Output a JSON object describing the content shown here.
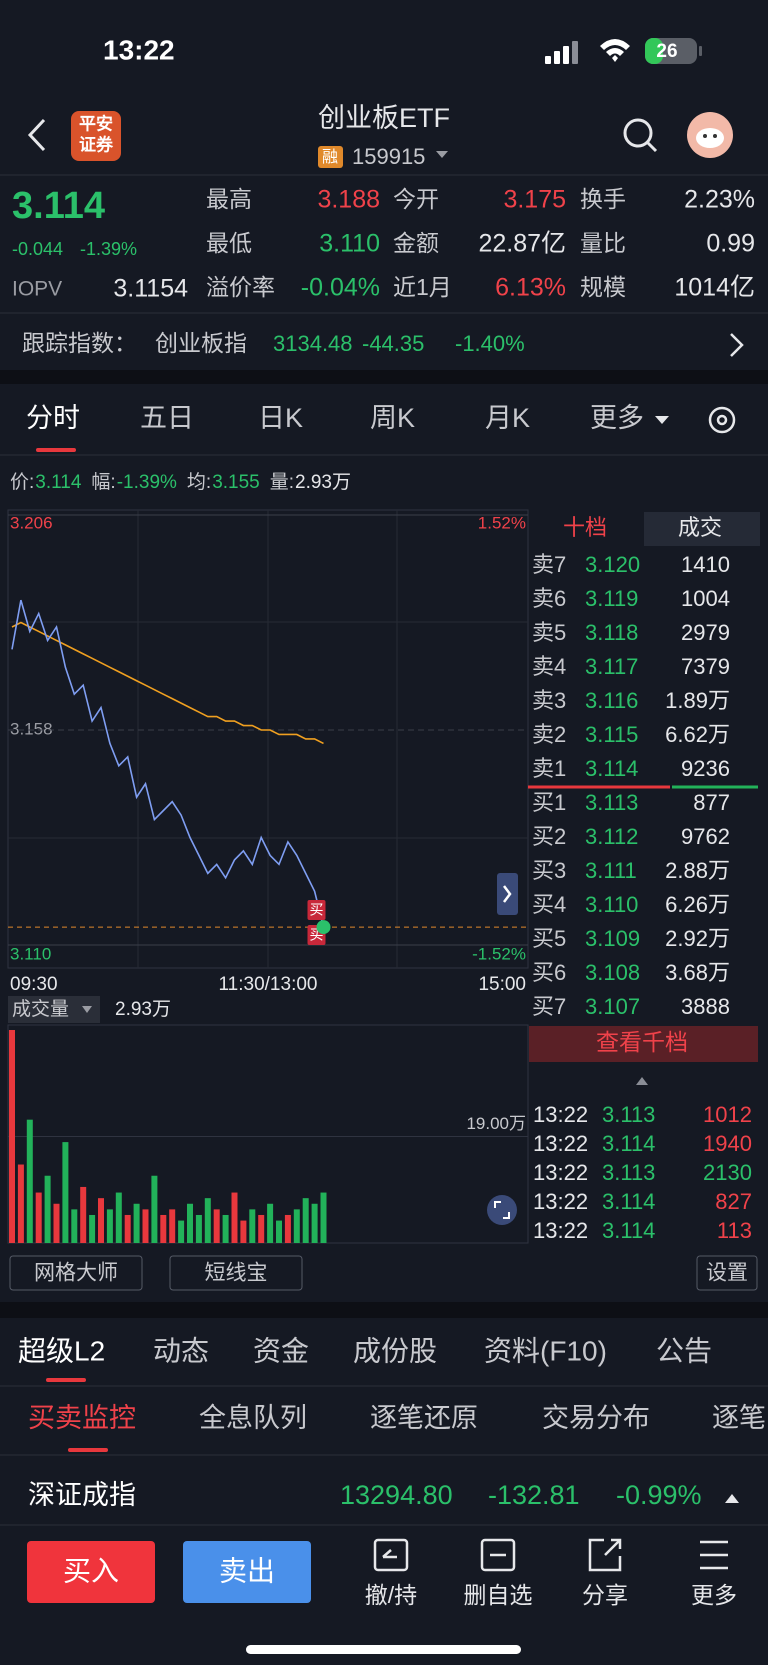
{
  "status_bar": {
    "time": "13:22",
    "battery": "26"
  },
  "header": {
    "logo": [
      "平安",
      "证券"
    ],
    "title": "创业板ETF",
    "badge": "融",
    "code": "159915"
  },
  "quote": {
    "price": "3.114",
    "change": "-0.044",
    "change_pct": "-1.39%",
    "iopv_label": "IOPV",
    "iopv": "3.1154",
    "fields": [
      [
        {
          "label": "最高",
          "value": "3.188",
          "color": "#f0424a"
        },
        {
          "label": "今开",
          "value": "3.175",
          "color": "#f0424a"
        },
        {
          "label": "换手",
          "value": "2.23%",
          "color": "#e6e7ea"
        }
      ],
      [
        {
          "label": "最低",
          "value": "3.110",
          "color": "#2bc06a"
        },
        {
          "label": "金额",
          "value": "22.87亿",
          "color": "#e6e7ea"
        },
        {
          "label": "量比",
          "value": "0.99",
          "color": "#e6e7ea"
        }
      ],
      [
        {
          "label": "溢价率",
          "value": "-0.04%",
          "color": "#2bc06a"
        },
        {
          "label": "近1月",
          "value": "6.13%",
          "color": "#f0424a"
        },
        {
          "label": "规模",
          "value": "1014亿",
          "color": "#e6e7ea"
        }
      ]
    ]
  },
  "tracking": {
    "label": "跟踪指数：",
    "name": "创业板指",
    "value": "3134.48",
    "change": "-44.35",
    "change_pct": "-1.40%"
  },
  "period_tabs": {
    "items": [
      "分时",
      "五日",
      "日K",
      "周K",
      "月K",
      "更多"
    ],
    "active": 0
  },
  "info_line": [
    {
      "label": "价:",
      "value": "3.114"
    },
    {
      "label": "幅:",
      "value": "-1.39%"
    },
    {
      "label": "均:",
      "value": "3.155"
    },
    {
      "label": "量:",
      "value": "2.93万"
    }
  ],
  "chart_data": [
    {
      "type": "line",
      "ylim": [
        3.11,
        3.206
      ],
      "yticks": [
        3.206,
        3.158,
        {
          "value": 3.11,
          "label": "3.110"
        }
      ],
      "y2lim": [
        -1.52,
        1.52
      ],
      "y2ticks": [
        {
          "value": 1.52,
          "label": "1.52%"
        },
        {
          "value": -1.52,
          "label": "-1.52%"
        }
      ],
      "x_labels": [
        "09:30",
        "11:30/13:00",
        "15:00"
      ],
      "series": [
        {
          "color": "#7f9ef2",
          "values": [
            3.176,
            3.187,
            3.18,
            3.184,
            3.178,
            3.181,
            3.172,
            3.166,
            3.168,
            3.16,
            3.163,
            3.155,
            3.15,
            3.152,
            3.143,
            3.146,
            3.138,
            3.14,
            3.142,
            3.139,
            3.134,
            3.13,
            3.126,
            3.128,
            3.125,
            3.129,
            3.131,
            3.128,
            3.134,
            3.13,
            3.128,
            3.133,
            3.13,
            3.126,
            3.122,
            3.114
          ]
        },
        {
          "color": "#f0a020",
          "values": [
            3.181,
            3.182,
            3.181,
            3.18,
            3.179,
            3.178,
            3.177,
            3.176,
            3.175,
            3.174,
            3.173,
            3.172,
            3.171,
            3.17,
            3.169,
            3.168,
            3.167,
            3.166,
            3.165,
            3.164,
            3.163,
            3.162,
            3.161,
            3.161,
            3.16,
            3.16,
            3.159,
            3.159,
            3.158,
            3.158,
            3.157,
            3.157,
            3.157,
            3.156,
            3.156,
            3.155
          ]
        }
      ],
      "markers": [
        "买",
        "买"
      ]
    },
    {
      "type": "bar",
      "label": "成交量",
      "current": "2.93万",
      "ylim": [
        0,
        38
      ],
      "yticks": [
        {
          "value": 19,
          "label": "19.00万"
        }
      ],
      "up_color": "#e8383d",
      "down_color": "#22b25a",
      "values": [
        38,
        14,
        22,
        9,
        12,
        7,
        18,
        6,
        10,
        5,
        8,
        6,
        9,
        5,
        7,
        6,
        12,
        5,
        6,
        4,
        7,
        5,
        8,
        6,
        5,
        9,
        4,
        6,
        5,
        7,
        4,
        5,
        6,
        8,
        7,
        9
      ]
    }
  ],
  "order_book": {
    "tabs": [
      "十档",
      "成交"
    ],
    "asks": [
      {
        "label": "卖7",
        "price": "3.120",
        "volume": "1410"
      },
      {
        "label": "卖6",
        "price": "3.119",
        "volume": "1004"
      },
      {
        "label": "卖5",
        "price": "3.118",
        "volume": "2979"
      },
      {
        "label": "卖4",
        "price": "3.117",
        "volume": "7379"
      },
      {
        "label": "卖3",
        "price": "3.116",
        "volume": "1.89万"
      },
      {
        "label": "卖2",
        "price": "3.115",
        "volume": "6.62万"
      },
      {
        "label": "卖1",
        "price": "3.114",
        "volume": "9236"
      }
    ],
    "bids": [
      {
        "label": "买1",
        "price": "3.113",
        "volume": "877"
      },
      {
        "label": "买2",
        "price": "3.112",
        "volume": "9762"
      },
      {
        "label": "买3",
        "price": "3.111",
        "volume": "2.88万"
      },
      {
        "label": "买4",
        "price": "3.110",
        "volume": "6.26万"
      },
      {
        "label": "买5",
        "price": "3.109",
        "volume": "2.92万"
      },
      {
        "label": "买6",
        "price": "3.108",
        "volume": "3.68万"
      },
      {
        "label": "买7",
        "price": "3.107",
        "volume": "3888"
      }
    ],
    "more": "查看千档"
  },
  "trades": [
    {
      "time": "13:22",
      "price": "3.113",
      "volume": "1012",
      "color": "#f0424a"
    },
    {
      "time": "13:22",
      "price": "3.114",
      "volume": "1940",
      "color": "#f0424a"
    },
    {
      "time": "13:22",
      "price": "3.113",
      "volume": "2130",
      "color": "#2bc06a"
    },
    {
      "time": "13:22",
      "price": "3.114",
      "volume": "827",
      "color": "#f0424a"
    },
    {
      "time": "13:22",
      "price": "3.114",
      "volume": "113",
      "color": "#f0424a"
    }
  ],
  "tools": {
    "items": [
      "网格大师",
      "短线宝"
    ],
    "settings": "设置"
  },
  "section_tabs": {
    "items": [
      "超级L2",
      "动态",
      "资金",
      "成份股",
      "资料(F10)",
      "公告"
    ],
    "active": 0
  },
  "sub_tabs": {
    "items": [
      "买卖监控",
      "全息队列",
      "逐笔还原",
      "交易分布",
      "逐笔"
    ],
    "active": 0
  },
  "index_bar": {
    "name": "深证成指",
    "value": "13294.80",
    "change": "-132.81",
    "change_pct": "-0.99%"
  },
  "actions": {
    "buy": "买入",
    "sell": "卖出",
    "items": [
      "撤/持",
      "删自选",
      "分享",
      "更多"
    ]
  }
}
